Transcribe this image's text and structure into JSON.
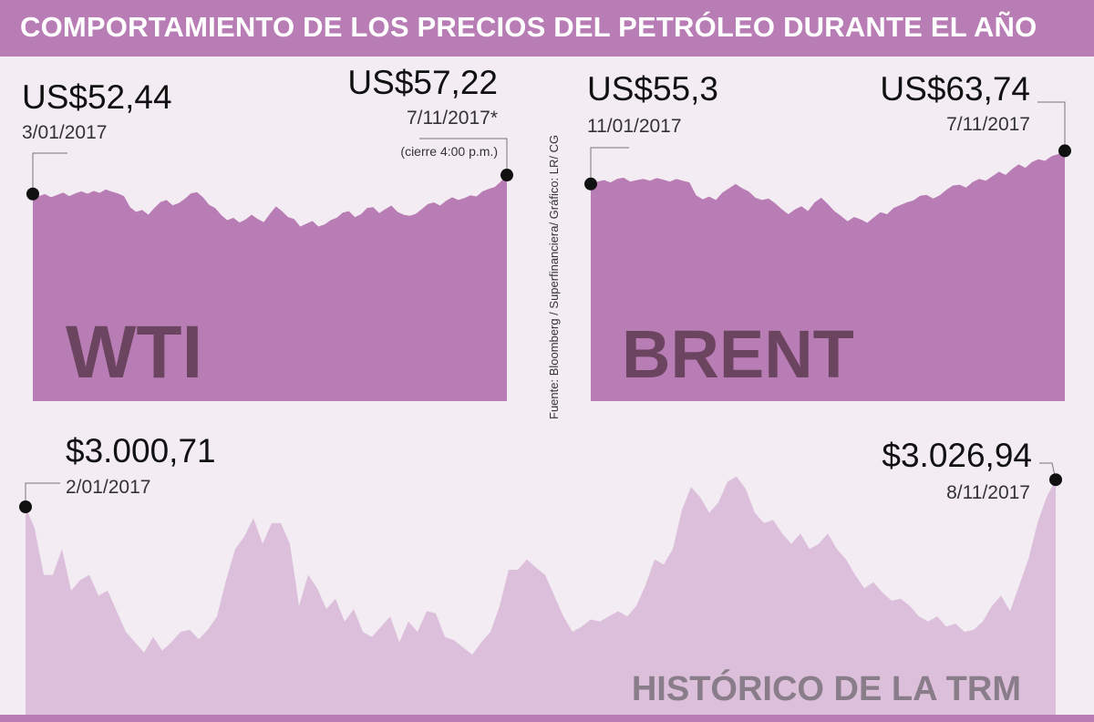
{
  "title": "COMPORTAMIENTO DE LOS PRECIOS DEL PETRÓLEO DURANTE EL AÑO",
  "source": "Fuente: Bloomberg / Superfinanciera/ Gráfico: LR/ CG",
  "colors": {
    "title_bg": "#b97db5",
    "oil_fill": "#b97db5",
    "trm_fill": "#dcbfdb",
    "big_label_oil": "#6b4460",
    "big_label_trm": "#8a7d8a",
    "background": "#f3edf3"
  },
  "chart_data": [
    {
      "type": "area",
      "name": "wti",
      "label": "WTI",
      "start": {
        "value": "US$52,44",
        "date": "3/01/2017"
      },
      "end": {
        "value": "US$57,22",
        "date": "7/11/2017*",
        "note": "(cierre 4:00 p.m.)"
      },
      "x_range": [
        "2017-01-03",
        "2017-11-07"
      ],
      "ylim": [
        0,
        60
      ],
      "values": [
        52.44,
        51.9,
        52.4,
        51.6,
        52.2,
        52.8,
        51.9,
        52.6,
        53.1,
        52.5,
        53.2,
        52.7,
        53.6,
        53.0,
        52.6,
        51.9,
        49.1,
        47.9,
        48.4,
        47.2,
        48.9,
        50.4,
        50.9,
        49.6,
        50.1,
        51.2,
        52.6,
        52.9,
        51.6,
        49.7,
        48.9,
        47.1,
        45.8,
        46.4,
        45.2,
        46.0,
        47.2,
        46.1,
        45.3,
        47.4,
        49.3,
        48.1,
        46.6,
        46.1,
        44.2,
        44.9,
        45.6,
        44.2,
        44.7,
        45.8,
        46.4,
        47.7,
        48.1,
        46.6,
        47.3,
        48.9,
        49.1,
        47.6,
        48.6,
        49.5,
        47.9,
        47.2,
        46.9,
        47.4,
        48.6,
        49.9,
        50.3,
        49.5,
        50.7,
        51.6,
        50.9,
        51.4,
        52.1,
        51.8,
        53.1,
        53.7,
        54.2,
        55.6,
        57.22
      ]
    },
    {
      "type": "area",
      "name": "brent",
      "label": "BRENT",
      "start": {
        "value": "US$55,3",
        "date": "11/01/2017"
      },
      "end": {
        "value": "US$63,74",
        "date": "7/11/2017"
      },
      "x_range": [
        "2017-01-11",
        "2017-11-07"
      ],
      "ylim": [
        0,
        65
      ],
      "values": [
        55.3,
        55.9,
        56.3,
        55.7,
        56.6,
        56.9,
        55.9,
        56.3,
        56.6,
        56.1,
        56.8,
        56.4,
        55.9,
        56.6,
        56.1,
        55.7,
        52.4,
        51.4,
        52.1,
        51.2,
        53.1,
        54.2,
        55.3,
        54.2,
        53.4,
        51.8,
        51.2,
        51.6,
        50.4,
        48.9,
        47.6,
        48.8,
        49.6,
        48.4,
        50.6,
        51.8,
        50.2,
        48.4,
        47.2,
        45.8,
        46.9,
        46.3,
        45.4,
        46.8,
        48.1,
        47.6,
        49.2,
        49.9,
        50.6,
        51.1,
        52.3,
        52.5,
        51.6,
        52.4,
        53.8,
        54.9,
        55.1,
        54.4,
        55.8,
        56.6,
        56.1,
        57.3,
        58.4,
        57.6,
        59.1,
        60.3,
        59.4,
        60.9,
        61.6,
        61.2,
        62.4,
        62.9,
        63.74
      ]
    },
    {
      "type": "area",
      "name": "trm",
      "label": "HISTÓRICO DE LA TRM",
      "start": {
        "value": "$3.000,71",
        "date": "2/01/2017"
      },
      "end": {
        "value": "$3.026,94",
        "date": "8/11/2017"
      },
      "x_range": [
        "2017-01-02",
        "2017-11-08"
      ],
      "ylim": [
        2800,
        3050
      ],
      "values": [
        3000.71,
        2980,
        2935,
        2935,
        2960,
        2920,
        2930,
        2935,
        2915,
        2920,
        2900,
        2880,
        2870,
        2860,
        2875,
        2862,
        2870,
        2880,
        2882,
        2873,
        2882,
        2895,
        2930,
        2960,
        2972,
        2990,
        2965,
        2985,
        2985,
        2965,
        2905,
        2935,
        2922,
        2902,
        2912,
        2890,
        2902,
        2880,
        2875,
        2885,
        2895,
        2870,
        2890,
        2880,
        2900,
        2898,
        2875,
        2872,
        2865,
        2858,
        2870,
        2880,
        2905,
        2940,
        2940,
        2950,
        2942,
        2935,
        2915,
        2895,
        2880,
        2885,
        2892,
        2890,
        2895,
        2900,
        2895,
        2905,
        2925,
        2950,
        2945,
        2960,
        2998,
        3020,
        3010,
        2995,
        3005,
        3025,
        3030,
        3018,
        2995,
        2985,
        2988,
        2975,
        2965,
        2975,
        2960,
        2965,
        2975,
        2960,
        2950,
        2935,
        2922,
        2928,
        2918,
        2910,
        2912,
        2905,
        2895,
        2890,
        2895,
        2885,
        2888,
        2880,
        2882,
        2890,
        2905,
        2915,
        2900,
        2925,
        2950,
        2985,
        3010,
        3026.94
      ]
    }
  ]
}
